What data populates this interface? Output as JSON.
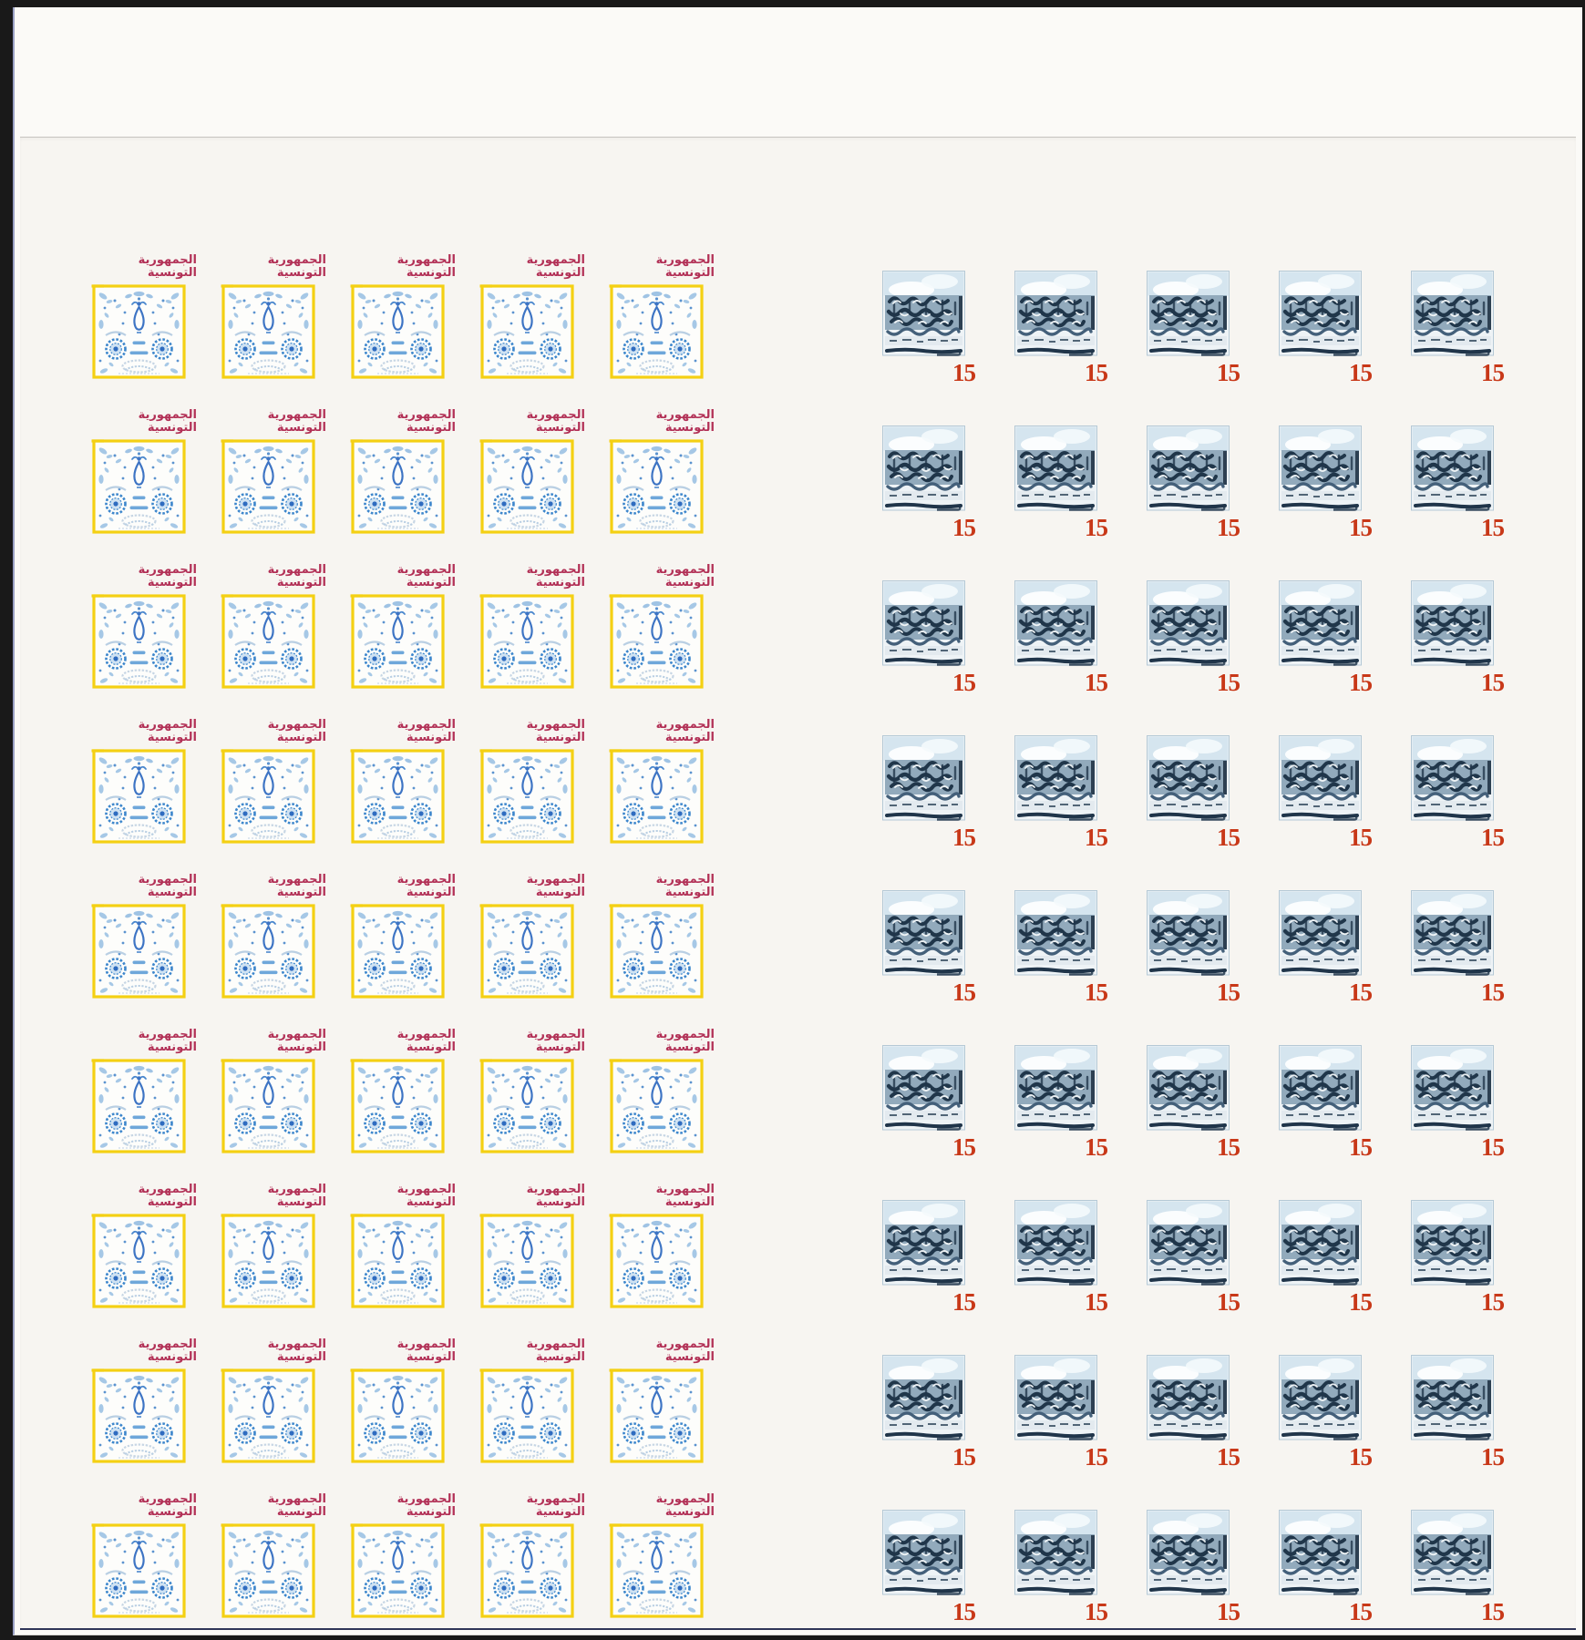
{
  "scene": {
    "description": "Two imperforate progressive colour proof sheets of Tunisian stamps photographed on a black background, blank sheet edge protruding at top",
    "background_color": "#191919",
    "sheet_color": "#f7f5f1",
    "back_sheet_color": "#fbfaf7"
  },
  "left_pane": {
    "rows": 9,
    "columns": 5,
    "stamp": {
      "country_line1": "الجمهورية",
      "country_line2": "التونسية",
      "country_text_color": "#b23056",
      "frame_color": "#f4d013",
      "ornament_light_blue": "#a6c8e6",
      "ornament_mid_blue": "#4a87cd"
    }
  },
  "right_pane": {
    "rows": 9,
    "columns": 5,
    "stamp": {
      "denomination": "15",
      "denomination_color": "#c83818",
      "sky_color": "#d5e5ef",
      "relief_dark": "#20364a",
      "relief_highlight": "#f4f8fa",
      "band_light": "#e3eaef"
    }
  }
}
